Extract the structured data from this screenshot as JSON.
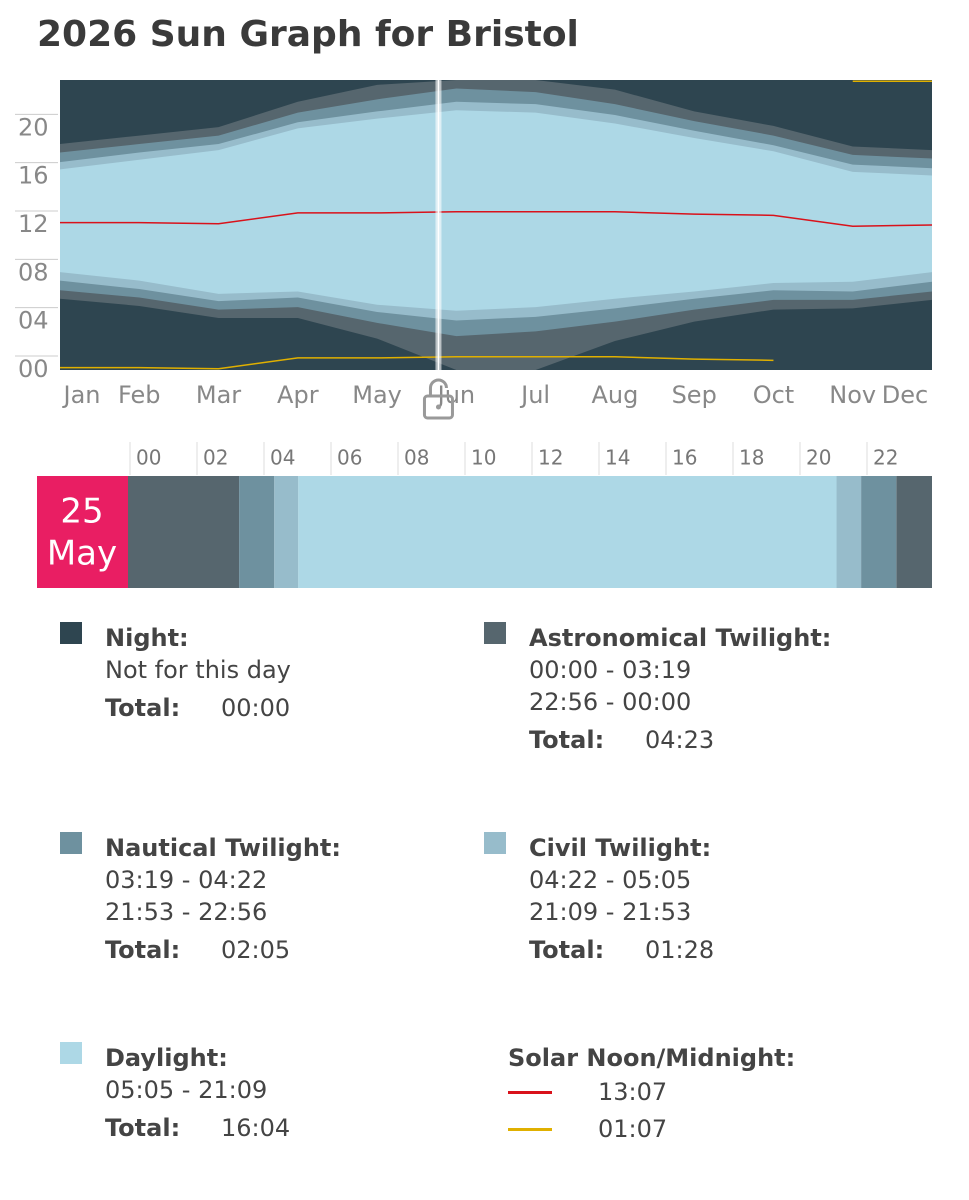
{
  "header": {
    "title": "2026 Sun Graph for Bristol"
  },
  "chart_data": {
    "type": "sun-bands",
    "categories": [
      "Jan",
      "Feb",
      "Mar",
      "Apr",
      "May",
      "Jun",
      "Jul",
      "Aug",
      "Sep",
      "Oct",
      "Nov",
      "Dec"
    ],
    "ylim": [
      0,
      24
    ],
    "yticks": [
      {
        "value": 0,
        "label": "00"
      },
      {
        "value": 4,
        "label": "04"
      },
      {
        "value": 8,
        "label": "08"
      },
      {
        "value": 12,
        "label": "12"
      },
      {
        "value": 16,
        "label": "16"
      },
      {
        "value": 20,
        "label": "20"
      }
    ],
    "night_color": "#2e4550",
    "series": [
      {
        "color": "#56666e",
        "start": [
          5.9,
          5.3,
          4.3,
          4.3,
          2.6,
          0,
          0,
          2.4,
          4.0,
          5.0,
          5.1,
          5.8
        ],
        "end": [
          18.7,
          19.4,
          20.1,
          22.2,
          23.6,
          24,
          24,
          23.2,
          21.4,
          20.2,
          18.5,
          18.2
        ]
      },
      {
        "color": "#6e919f",
        "start": [
          6.6,
          6.0,
          5.0,
          5.2,
          3.9,
          2.8,
          3.2,
          4.0,
          5.0,
          5.8,
          5.8,
          6.5
        ],
        "end": [
          18.0,
          18.7,
          19.4,
          21.3,
          22.4,
          23.3,
          23.0,
          22.0,
          20.6,
          19.4,
          17.8,
          17.5
        ]
      },
      {
        "color": "#97bccb",
        "start": [
          7.4,
          6.7,
          5.7,
          6.0,
          4.8,
          4.1,
          4.4,
          5.1,
          5.9,
          6.6,
          6.5,
          7.3
        ],
        "end": [
          17.2,
          18.0,
          18.7,
          20.5,
          21.4,
          22.2,
          22.0,
          21.1,
          19.8,
          18.6,
          17.0,
          16.7
        ]
      },
      {
        "color": "#add8e6",
        "start": [
          8.1,
          7.4,
          6.3,
          6.5,
          5.4,
          4.9,
          5.2,
          5.9,
          6.5,
          7.2,
          7.3,
          8.1
        ],
        "end": [
          16.6,
          17.4,
          18.2,
          20.0,
          20.8,
          21.5,
          21.3,
          20.4,
          19.2,
          18.1,
          16.4,
          16.1
        ]
      }
    ],
    "noon": {
      "color": "#d9121b",
      "values": [
        12.2,
        12.2,
        12.1,
        13.0,
        13.0,
        13.1,
        13.1,
        13.1,
        12.9,
        12.8,
        11.9,
        12.0
      ]
    },
    "midnight": {
      "color": "#e0b000",
      "values": [
        0.2,
        0.2,
        0.1,
        1.0,
        1.0,
        1.1,
        1.1,
        1.1,
        0.9,
        0.8,
        23.9,
        23.9
      ]
    }
  },
  "day": {
    "day": "25",
    "month": "May",
    "hour_ticks": [
      "00",
      "02",
      "04",
      "06",
      "08",
      "10",
      "12",
      "14",
      "16",
      "18",
      "20",
      "22"
    ]
  },
  "legend": [
    {
      "title": "Night:",
      "color": "#2e4550",
      "lines": [
        "Not for this day"
      ],
      "total_label": "Total:",
      "total": "00:00"
    },
    {
      "title": "Astronomical Twilight:",
      "color": "#56666e",
      "lines": [
        "00:00 - 03:19",
        "22:56 - 00:00"
      ],
      "total_label": "Total:",
      "total": "04:23"
    },
    {
      "title": "Nautical Twilight:",
      "color": "#6e919f",
      "lines": [
        "03:19 - 04:22",
        "21:53 - 22:56"
      ],
      "total_label": "Total:",
      "total": "02:05"
    },
    {
      "title": "Civil Twilight:",
      "color": "#97bccb",
      "lines": [
        "04:22 - 05:05",
        "21:09 - 21:53"
      ],
      "total_label": "Total:",
      "total": "01:28"
    },
    {
      "title": "Daylight:",
      "color": "#add8e6",
      "lines": [
        "05:05 - 21:09"
      ],
      "total_label": "Total:",
      "total": "16:04"
    }
  ],
  "solar": {
    "title": "Solar Noon/Midnight:",
    "noon": "13:07",
    "midnight": "01:07"
  }
}
